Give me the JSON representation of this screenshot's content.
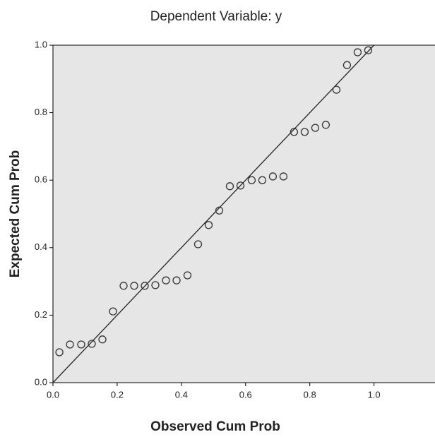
{
  "chart_data": {
    "type": "scatter",
    "title": "Dependent Variable: y",
    "xlabel": "Observed Cum Prob",
    "ylabel": "Expected Cum Prob",
    "x": [
      0.02,
      0.053,
      0.088,
      0.121,
      0.154,
      0.187,
      0.22,
      0.253,
      0.286,
      0.319,
      0.352,
      0.385,
      0.419,
      0.452,
      0.485,
      0.518,
      0.551,
      0.584,
      0.619,
      0.652,
      0.685,
      0.718,
      0.751,
      0.784,
      0.817,
      0.85,
      0.883,
      0.916,
      0.949,
      0.982
    ],
    "values": [
      0.09,
      0.113,
      0.113,
      0.115,
      0.128,
      0.211,
      0.287,
      0.287,
      0.287,
      0.289,
      0.303,
      0.303,
      0.318,
      0.41,
      0.467,
      0.51,
      0.582,
      0.584,
      0.6,
      0.6,
      0.611,
      0.611,
      0.743,
      0.743,
      0.755,
      0.764,
      0.868,
      0.941,
      0.979,
      0.985
    ],
    "color": "#333333",
    "diagonal": true,
    "xlim": [
      0,
      1.19
    ],
    "ylim": [
      0,
      1
    ],
    "xticks": [
      {
        "value": 0,
        "label": "0.0"
      },
      {
        "value": 0.2,
        "label": "0.2"
      },
      {
        "value": 0.4,
        "label": "0.4"
      },
      {
        "value": 0.6,
        "label": "0.6"
      },
      {
        "value": 0.8,
        "label": "0.8"
      },
      {
        "value": 1,
        "label": "1.0"
      }
    ],
    "yticks": [
      {
        "value": 0,
        "label": "0.0"
      },
      {
        "value": 0.2,
        "label": "0.2"
      },
      {
        "value": 0.4,
        "label": "0.4"
      },
      {
        "value": 0.6,
        "label": "0.6"
      },
      {
        "value": 0.8,
        "label": "0.8"
      },
      {
        "value": 1,
        "label": "1.0"
      }
    ]
  }
}
